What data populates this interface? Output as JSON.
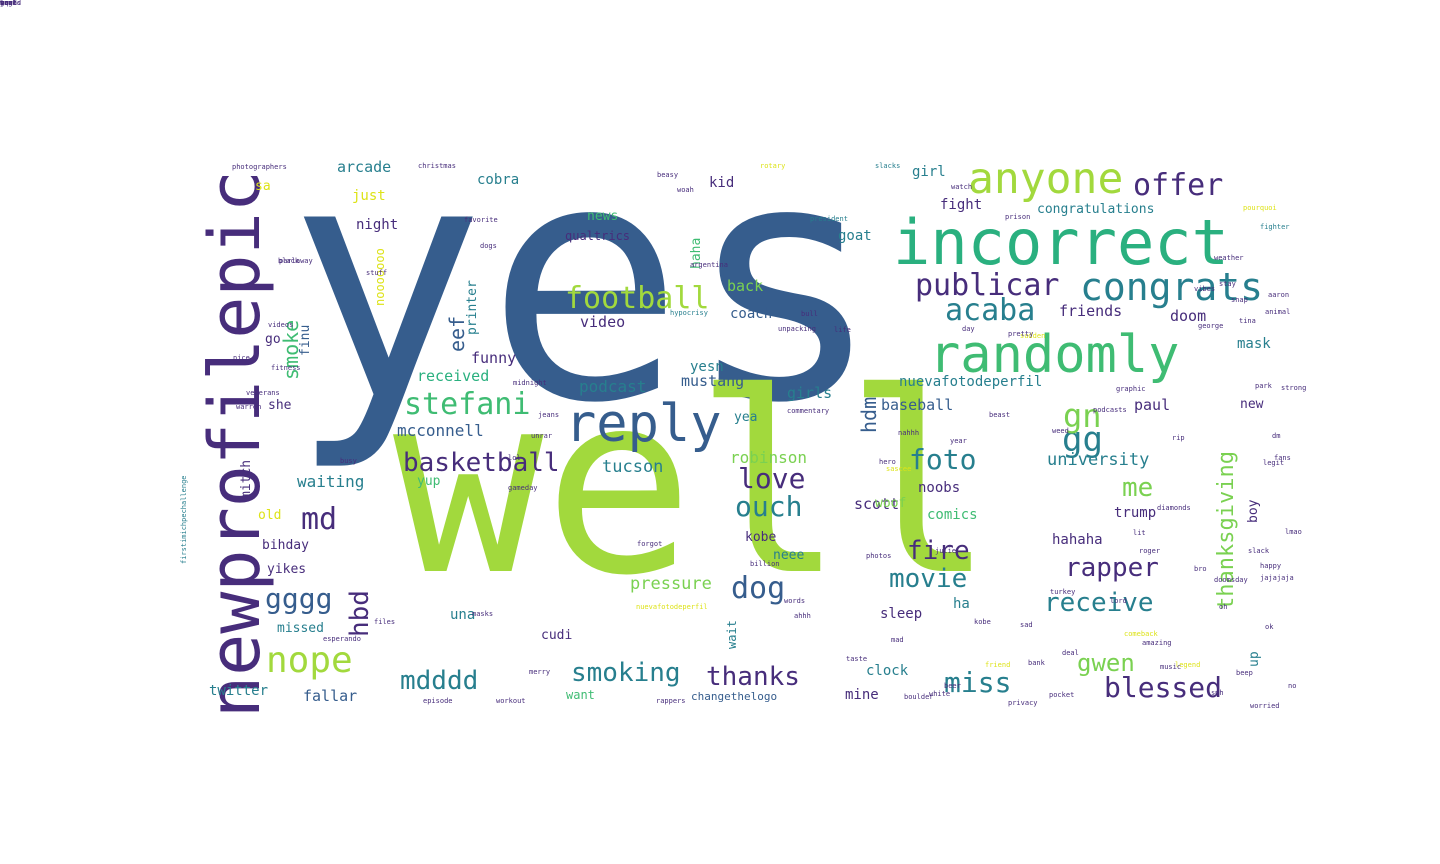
{
  "palette": {
    "navy": "#3b2a6b",
    "purple": "#472d7b",
    "blue": "#365d8d",
    "steel": "#2f6f8e",
    "teal": "#277f8e",
    "green": "#2ab07f",
    "mint": "#3fbc73",
    "lime": "#a2d93d",
    "yellowgreen": "#7ad151",
    "yellow": "#dde318"
  },
  "words": [
    {
      "text": "yes",
      "color": "blue"
    },
    {
      "text": "well",
      "color": "lime"
    },
    {
      "text": "newprofilepic",
      "color": "purple",
      "vertical": true
    },
    {
      "text": "incorrect",
      "color": "green"
    },
    {
      "text": "randomly",
      "color": "mint"
    },
    {
      "text": "reply",
      "color": "blue"
    },
    {
      "text": "anyone",
      "color": "lime"
    },
    {
      "text": "congrats",
      "color": "teal"
    },
    {
      "text": "football",
      "color": "lime"
    },
    {
      "text": "publicar",
      "color": "purple"
    },
    {
      "text": "offer",
      "color": "purple"
    },
    {
      "text": "acaba",
      "color": "teal"
    },
    {
      "text": "nope",
      "color": "lime"
    },
    {
      "text": "stefani",
      "color": "mint"
    },
    {
      "text": "basketball",
      "color": "purple"
    },
    {
      "text": "love",
      "color": "purple"
    },
    {
      "text": "ouch",
      "color": "teal"
    },
    {
      "text": "foto",
      "color": "teal"
    },
    {
      "text": "gg",
      "color": "teal"
    },
    {
      "text": "gn",
      "color": "yellowgreen"
    },
    {
      "text": "md",
      "color": "purple"
    },
    {
      "text": "gggg",
      "color": "blue"
    },
    {
      "text": "hbd",
      "color": "purple",
      "vertical": true
    },
    {
      "text": "dog",
      "color": "blue"
    },
    {
      "text": "movie",
      "color": "teal"
    },
    {
      "text": "fire",
      "color": "purple"
    },
    {
      "text": "rapper",
      "color": "purple"
    },
    {
      "text": "receive",
      "color": "teal"
    },
    {
      "text": "thanksgiving",
      "color": "yellowgreen",
      "vertical": true
    },
    {
      "text": "miss",
      "color": "teal"
    },
    {
      "text": "blessed",
      "color": "purple"
    },
    {
      "text": "smoking",
      "color": "teal"
    },
    {
      "text": "thanks",
      "color": "purple"
    },
    {
      "text": "mdddd",
      "color": "teal"
    },
    {
      "text": "gwen",
      "color": "yellowgreen"
    },
    {
      "text": "me",
      "color": "yellowgreen"
    },
    {
      "text": "smoke",
      "color": "mint",
      "vertical": true
    },
    {
      "text": "eef",
      "color": "blue",
      "vertical": true
    },
    {
      "text": "hdm",
      "color": "blue",
      "vertical": true
    },
    {
      "text": "university",
      "color": "teal"
    },
    {
      "text": "pressure",
      "color": "yellowgreen"
    },
    {
      "text": "mcconnell",
      "color": "blue"
    },
    {
      "text": "tucson",
      "color": "teal"
    },
    {
      "text": "robinson",
      "color": "yellowgreen"
    },
    {
      "text": "waiting",
      "color": "teal"
    },
    {
      "text": "received",
      "color": "green"
    },
    {
      "text": "podcast",
      "color": "teal"
    },
    {
      "text": "mustang",
      "color": "blue"
    },
    {
      "text": "funny",
      "color": "purple"
    },
    {
      "text": "yesn",
      "color": "teal"
    },
    {
      "text": "video",
      "color": "purple"
    },
    {
      "text": "coach",
      "color": "blue"
    },
    {
      "text": "back",
      "color": "yellowgreen"
    },
    {
      "text": "friends",
      "color": "purple"
    },
    {
      "text": "doom",
      "color": "purple"
    },
    {
      "text": "mask",
      "color": "teal"
    },
    {
      "text": "nuevafotodeperfil",
      "color": "teal"
    },
    {
      "text": "baseball",
      "color": "blue"
    },
    {
      "text": "paul",
      "color": "purple"
    },
    {
      "text": "girls",
      "color": "teal"
    },
    {
      "text": "yea",
      "color": "teal"
    },
    {
      "text": "scott",
      "color": "purple"
    },
    {
      "text": "noobs",
      "color": "purple"
    },
    {
      "text": "comics",
      "color": "mint"
    },
    {
      "text": "trump",
      "color": "purple"
    },
    {
      "text": "hahaha",
      "color": "purple"
    },
    {
      "text": "kobe",
      "color": "purple"
    },
    {
      "text": "neee",
      "color": "teal"
    },
    {
      "text": "sleep",
      "color": "purple"
    },
    {
      "text": "ha",
      "color": "teal"
    },
    {
      "text": "clock",
      "color": "teal"
    },
    {
      "text": "mine",
      "color": "purple"
    },
    {
      "text": "want",
      "color": "mint"
    },
    {
      "text": "changethelogo",
      "color": "blue"
    },
    {
      "text": "fallar",
      "color": "blue"
    },
    {
      "text": "twitter",
      "color": "teal"
    },
    {
      "text": "cudi",
      "color": "purple"
    },
    {
      "text": "una",
      "color": "teal"
    },
    {
      "text": "missed",
      "color": "teal"
    },
    {
      "text": "yikes",
      "color": "purple"
    },
    {
      "text": "bihday",
      "color": "purple"
    },
    {
      "text": "old",
      "color": "yellow"
    },
    {
      "text": "yup",
      "color": "mint"
    },
    {
      "text": "mitch",
      "color": "purple",
      "vertical": true
    },
    {
      "text": "she",
      "color": "purple"
    },
    {
      "text": "go",
      "color": "purple"
    },
    {
      "text": "finu",
      "color": "blue",
      "vertical": true
    },
    {
      "text": "night",
      "color": "purple"
    },
    {
      "text": "just",
      "color": "yellow"
    },
    {
      "text": "arcade",
      "color": "teal"
    },
    {
      "text": "cobra",
      "color": "teal"
    },
    {
      "text": "news",
      "color": "mint"
    },
    {
      "text": "qualtrics",
      "color": "purple"
    },
    {
      "text": "kid",
      "color": "purple"
    },
    {
      "text": "haha",
      "color": "mint",
      "vertical": true
    },
    {
      "text": "girl",
      "color": "teal"
    },
    {
      "text": "fight",
      "color": "purple"
    },
    {
      "text": "congratulations",
      "color": "teal"
    },
    {
      "text": "goat",
      "color": "teal"
    },
    {
      "text": "printer",
      "color": "teal",
      "vertical": true
    },
    {
      "text": "sa",
      "color": "yellow"
    },
    {
      "text": "nooooooo",
      "color": "yellow",
      "vertical": true
    },
    {
      "text": "woof",
      "color": "yellowgreen"
    },
    {
      "text": "boy",
      "color": "purple",
      "vertical": true
    },
    {
      "text": "up",
      "color": "teal",
      "vertical": true
    },
    {
      "text": "new",
      "color": "purple"
    },
    {
      "text": "wait",
      "color": "teal",
      "vertical": true
    },
    {
      "text": "photographers",
      "color": "purple"
    },
    {
      "text": "christmas",
      "color": "purple"
    },
    {
      "text": "president",
      "color": "teal"
    },
    {
      "text": "argentina",
      "color": "purple"
    },
    {
      "text": "unpacking",
      "color": "purple"
    },
    {
      "text": "commentary",
      "color": "purple"
    },
    {
      "text": "midnight",
      "color": "purple"
    },
    {
      "text": "podcasts",
      "color": "purple"
    },
    {
      "text": "firstimichpechallenge",
      "color": "teal",
      "vertical": true
    },
    {
      "text": "nuevafotodeperfil",
      "color": "yellow"
    },
    {
      "text": "parlaway",
      "color": "purple"
    },
    {
      "text": "fitness",
      "color": "purple"
    },
    {
      "text": "veterans",
      "color": "purple"
    },
    {
      "text": "videos",
      "color": "purple"
    },
    {
      "text": "warren",
      "color": "purple"
    },
    {
      "text": "stuff",
      "color": "purple"
    },
    {
      "text": "black",
      "color": "purple"
    },
    {
      "text": "favorite",
      "color": "purple"
    },
    {
      "text": "dogs",
      "color": "purple"
    },
    {
      "text": "hypocrisy",
      "color": "teal"
    },
    {
      "text": "graphic",
      "color": "purple"
    },
    {
      "text": "diamonds",
      "color": "purple"
    },
    {
      "text": "roger",
      "color": "purple"
    },
    {
      "text": "turkey",
      "color": "purple"
    },
    {
      "text": "doomsday",
      "color": "purple"
    },
    {
      "text": "worried",
      "color": "purple"
    },
    {
      "text": "privacy",
      "color": "purple"
    },
    {
      "text": "boulder",
      "color": "purple"
    },
    {
      "text": "rappers",
      "color": "purple"
    },
    {
      "text": "workout",
      "color": "purple"
    },
    {
      "text": "episode",
      "color": "purple"
    },
    {
      "text": "esperando",
      "color": "purple"
    },
    {
      "text": "legend",
      "color": "yellow"
    },
    {
      "text": "music",
      "color": "purple"
    },
    {
      "text": "pocket",
      "color": "purple"
    },
    {
      "text": "friend",
      "color": "yellow"
    },
    {
      "text": "white",
      "color": "purple"
    },
    {
      "text": "photos",
      "color": "purple"
    },
    {
      "text": "billion",
      "color": "purple"
    },
    {
      "text": "forgot",
      "color": "purple"
    },
    {
      "text": "taste",
      "color": "purple"
    },
    {
      "text": "words",
      "color": "purple"
    },
    {
      "text": "pourquoi",
      "color": "yellow"
    },
    {
      "text": "fighter",
      "color": "teal"
    },
    {
      "text": "george",
      "color": "purple"
    },
    {
      "text": "prison",
      "color": "purple"
    },
    {
      "text": "watch",
      "color": "purple"
    },
    {
      "text": "slacks",
      "color": "teal"
    },
    {
      "text": "rotary",
      "color": "yellow"
    },
    {
      "text": "woah",
      "color": "purple"
    },
    {
      "text": "beasy",
      "color": "purple"
    },
    {
      "text": "sascee",
      "color": "yellow"
    },
    {
      "text": "gameday",
      "color": "purple"
    },
    {
      "text": "masks",
      "color": "purple"
    },
    {
      "text": "files",
      "color": "purple"
    },
    {
      "text": "jeans",
      "color": "purple"
    },
    {
      "text": "sudden",
      "color": "yellow"
    },
    {
      "text": "life",
      "color": "purple"
    },
    {
      "text": "day",
      "color": "purple"
    },
    {
      "text": "pretty",
      "color": "purple"
    },
    {
      "text": "bull",
      "color": "purple"
    },
    {
      "text": "animal",
      "color": "purple"
    },
    {
      "text": "aaron",
      "color": "purple"
    },
    {
      "text": "park",
      "color": "purple"
    },
    {
      "text": "jajajaja",
      "color": "purple"
    },
    {
      "text": "happy",
      "color": "purple"
    },
    {
      "text": "slack",
      "color": "purple"
    },
    {
      "text": "julie",
      "color": "purple"
    },
    {
      "text": "kobe",
      "color": "purple"
    },
    {
      "text": "comeback",
      "color": "yellow"
    },
    {
      "text": "mad",
      "color": "purple"
    },
    {
      "text": "ahhh",
      "color": "purple"
    },
    {
      "text": "sad",
      "color": "purple"
    },
    {
      "text": "merry",
      "color": "purple"
    },
    {
      "text": "beer",
      "color": "purple"
    },
    {
      "text": "bank",
      "color": "purple"
    },
    {
      "text": "hero",
      "color": "purple"
    },
    {
      "text": "year",
      "color": "purple"
    },
    {
      "text": "nahhh",
      "color": "purple"
    },
    {
      "text": "beast",
      "color": "purple"
    },
    {
      "text": "busy",
      "color": "purple"
    },
    {
      "text": "unrar",
      "color": "purple"
    },
    {
      "text": "lol",
      "color": "purple"
    },
    {
      "text": "weed",
      "color": "purple"
    },
    {
      "text": "tina",
      "color": "purple"
    },
    {
      "text": "weather",
      "color": "purple"
    },
    {
      "text": "stay",
      "color": "purple"
    },
    {
      "text": "strong",
      "color": "purple"
    },
    {
      "text": "fans",
      "color": "purple"
    },
    {
      "text": "nice",
      "color": "purple"
    },
    {
      "text": "legit",
      "color": "purple"
    },
    {
      "text": "vibes",
      "color": "purple"
    },
    {
      "text": "snap",
      "color": "purple"
    },
    {
      "text": "dm",
      "color": "purple"
    },
    {
      "text": "rip",
      "color": "purple"
    },
    {
      "text": "lit",
      "color": "purple"
    },
    {
      "text": "oh",
      "color": "purple"
    },
    {
      "text": "ok",
      "color": "purple"
    },
    {
      "text": "no",
      "color": "purple"
    },
    {
      "text": "lmao",
      "color": "purple"
    },
    {
      "text": "bro",
      "color": "purple"
    },
    {
      "text": "lord",
      "color": "purple"
    },
    {
      "text": "amazing",
      "color": "purple"
    },
    {
      "text": "deal",
      "color": "purple"
    },
    {
      "text": "beep",
      "color": "purple"
    },
    {
      "text": "smh",
      "color": "purple"
    },
    {
      "text": "bruh",
      "color": "purple"
    },
    {
      "text": "fam",
      "color": "purple"
    },
    {
      "text": "squad",
      "color": "purple"
    },
    {
      "text": "goals",
      "color": "purple"
    },
    {
      "text": "mood",
      "color": "purple"
    },
    {
      "text": "cool",
      "color": "purple"
    },
    {
      "text": "wow",
      "color": "purple"
    },
    {
      "text": "omg",
      "color": "purple"
    },
    {
      "text": "yeah",
      "color": "purple"
    }
  ]
}
